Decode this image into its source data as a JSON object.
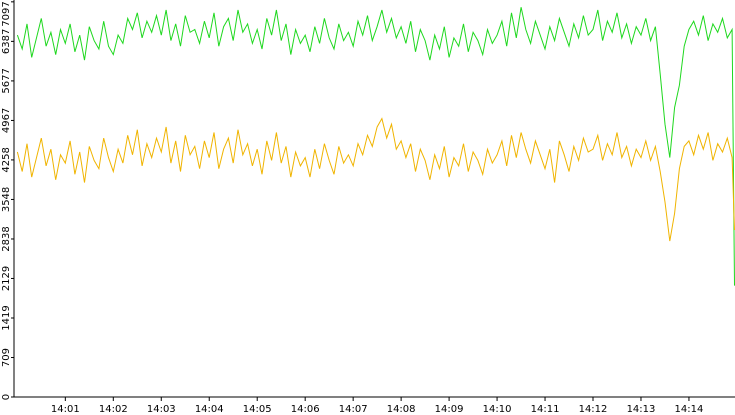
{
  "chart_data": {
    "type": "line",
    "x": [
      0,
      0.1,
      0.2,
      0.3,
      0.4,
      0.5,
      0.6,
      0.7,
      0.8,
      0.9,
      1,
      1.1,
      1.2,
      1.3,
      1.4,
      1.5,
      1.6,
      1.7,
      1.8,
      1.9,
      2,
      2.1,
      2.2,
      2.3,
      2.4,
      2.5,
      2.6,
      2.7,
      2.8,
      2.9,
      3,
      3.1,
      3.2,
      3.3,
      3.4,
      3.5,
      3.6,
      3.7,
      3.8,
      3.9,
      4,
      4.1,
      4.2,
      4.3,
      4.4,
      4.5,
      4.6,
      4.7,
      4.8,
      4.9,
      5,
      5.1,
      5.2,
      5.3,
      5.4,
      5.5,
      5.6,
      5.7,
      5.8,
      5.9,
      6,
      6.1,
      6.2,
      6.3,
      6.4,
      6.5,
      6.6,
      6.7,
      6.8,
      6.9,
      7,
      7.1,
      7.2,
      7.3,
      7.4,
      7.5,
      7.6,
      7.7,
      7.8,
      7.9,
      8,
      8.1,
      8.2,
      8.3,
      8.4,
      8.5,
      8.6,
      8.7,
      8.8,
      8.9,
      9,
      9.1,
      9.2,
      9.3,
      9.4,
      9.5,
      9.6,
      9.7,
      9.8,
      9.9,
      10,
      10.1,
      10.2,
      10.3,
      10.4,
      10.5,
      10.6,
      10.7,
      10.8,
      10.9,
      11,
      11.1,
      11.2,
      11.3,
      11.4,
      11.5,
      11.6,
      11.7,
      11.8,
      11.9,
      12,
      12.1,
      12.2,
      12.3,
      12.4,
      12.5,
      12.6,
      12.7,
      12.8,
      12.9,
      13,
      13.1,
      13.2,
      13.3,
      13.4,
      13.5,
      13.6,
      13.7,
      13.8,
      13.9,
      14,
      14.1,
      14.2,
      14.3,
      14.4,
      14.5,
      14.6,
      14.7,
      14.8,
      14.9,
      14.95
    ],
    "series": [
      {
        "color": "#1ed81e",
        "values": [
          6500,
          6250,
          6700,
          6100,
          6450,
          6800,
          6300,
          6550,
          6150,
          6600,
          6350,
          6700,
          6200,
          6500,
          6050,
          6650,
          6400,
          6250,
          6750,
          6300,
          6150,
          6500,
          6350,
          6800,
          6600,
          6900,
          6450,
          6750,
          6550,
          6850,
          6500,
          6950,
          6400,
          6700,
          6300,
          6850,
          6550,
          6600,
          6350,
          6750,
          6450,
          6900,
          6300,
          6650,
          6800,
          6400,
          6950,
          6550,
          6700,
          6350,
          6600,
          6250,
          6800,
          6500,
          6950,
          6400,
          6700,
          6150,
          6600,
          6350,
          6500,
          6200,
          6650,
          6350,
          6800,
          6450,
          6250,
          6700,
          6400,
          6550,
          6300,
          6750,
          6500,
          6850,
          6400,
          6650,
          6950,
          6550,
          6800,
          6450,
          6650,
          6350,
          6750,
          6200,
          6600,
          6400,
          6050,
          6500,
          6250,
          6650,
          6100,
          6450,
          6300,
          6700,
          6200,
          6550,
          6400,
          6150,
          6600,
          6350,
          6500,
          6750,
          6300,
          6900,
          6450,
          7000,
          6600,
          6350,
          6750,
          6500,
          6250,
          6650,
          6400,
          6800,
          6550,
          6300,
          6700,
          6450,
          6850,
          6500,
          6600,
          6950,
          6400,
          6750,
          6550,
          6900,
          6450,
          6700,
          6350,
          6650,
          6500,
          6800,
          6400,
          6650,
          5800,
          4900,
          4300,
          5200,
          5600,
          6300,
          6600,
          6750,
          6500,
          6850,
          6400,
          6700,
          6550,
          6800,
          6450,
          6600,
          2000
        ]
      },
      {
        "color": "#f0b400",
        "values": [
          4400,
          4050,
          4550,
          3950,
          4300,
          4650,
          4150,
          4450,
          3900,
          4350,
          4200,
          4600,
          4000,
          4400,
          3850,
          4500,
          4250,
          4100,
          4650,
          4300,
          4050,
          4450,
          4200,
          4700,
          4350,
          4800,
          4150,
          4550,
          4300,
          4650,
          4400,
          4850,
          4200,
          4600,
          4050,
          4700,
          4350,
          4500,
          4100,
          4600,
          4300,
          4750,
          4100,
          4450,
          4650,
          4200,
          4800,
          4350,
          4550,
          4150,
          4450,
          4000,
          4600,
          4250,
          4750,
          4200,
          4500,
          3950,
          4400,
          4150,
          4300,
          3950,
          4450,
          4100,
          4550,
          4250,
          4000,
          4500,
          4200,
          4350,
          4150,
          4550,
          4350,
          4700,
          4500,
          4850,
          5000,
          4650,
          4900,
          4450,
          4600,
          4300,
          4550,
          4050,
          4450,
          4250,
          3900,
          4350,
          4100,
          4500,
          3950,
          4300,
          4150,
          4550,
          4050,
          4400,
          4250,
          4000,
          4450,
          4200,
          4350,
          4600,
          4150,
          4700,
          4300,
          4750,
          4450,
          4200,
          4600,
          4350,
          4100,
          4450,
          3850,
          4600,
          4350,
          4050,
          4500,
          4250,
          4650,
          4400,
          4450,
          4700,
          4250,
          4550,
          4350,
          4750,
          4300,
          4500,
          4150,
          4450,
          4300,
          4600,
          4250,
          4500,
          4050,
          3500,
          2800,
          3300,
          4100,
          4500,
          4600,
          4350,
          4700,
          4450,
          4750,
          4250,
          4550,
          4400,
          4650,
          4300,
          3000
        ]
      }
    ],
    "xlim": [
      -0.07,
      14.96
    ],
    "xticks": [
      {
        "value": 1,
        "label": "14:01"
      },
      {
        "value": 2,
        "label": "14:02"
      },
      {
        "value": 3,
        "label": "14:03"
      },
      {
        "value": 4,
        "label": "14:04"
      },
      {
        "value": 5,
        "label": "14:05"
      },
      {
        "value": 6,
        "label": "14:06"
      },
      {
        "value": 7,
        "label": "14:07"
      },
      {
        "value": 8,
        "label": "14:08"
      },
      {
        "value": 9,
        "label": "14:09"
      },
      {
        "value": 10,
        "label": "14:10"
      },
      {
        "value": 11,
        "label": "14:11"
      },
      {
        "value": 12,
        "label": "14:12"
      },
      {
        "value": 13,
        "label": "14:13"
      },
      {
        "value": 14,
        "label": "14:14"
      }
    ],
    "ylim": [
      0,
      7130
    ],
    "yticks": [
      0,
      709,
      1419,
      2129,
      2838,
      3548,
      4258,
      4967,
      5677,
      6387,
      7097
    ]
  }
}
